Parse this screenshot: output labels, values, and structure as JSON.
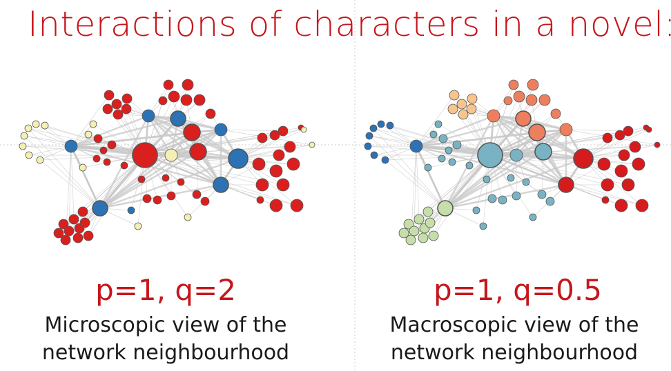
{
  "title": "Interactions of characters in a novel:",
  "panels": [
    {
      "id": "left",
      "params": "p=1, q=2",
      "description_line1": "Microscopic view of the",
      "description_line2": "network neighbourhood"
    },
    {
      "id": "right",
      "params": "p=1, q=0.5",
      "description_line1": "Macroscopic view of the",
      "description_line2": "network neighbourhood"
    }
  ],
  "colors": {
    "title": "#c6161c",
    "edge": "#c8c8c8",
    "node_stroke": "#555555",
    "left": {
      "red": "#d9201e",
      "blue": "#2c72b5",
      "yellow": "#f4f0b4"
    },
    "right": {
      "red": "#d51b1d",
      "salmon": "#ec7f5e",
      "peach": "#f8c48e",
      "darkblue": "#2c72b5",
      "teal": "#79b2c2",
      "lightgreen": "#c6deaa"
    }
  }
}
